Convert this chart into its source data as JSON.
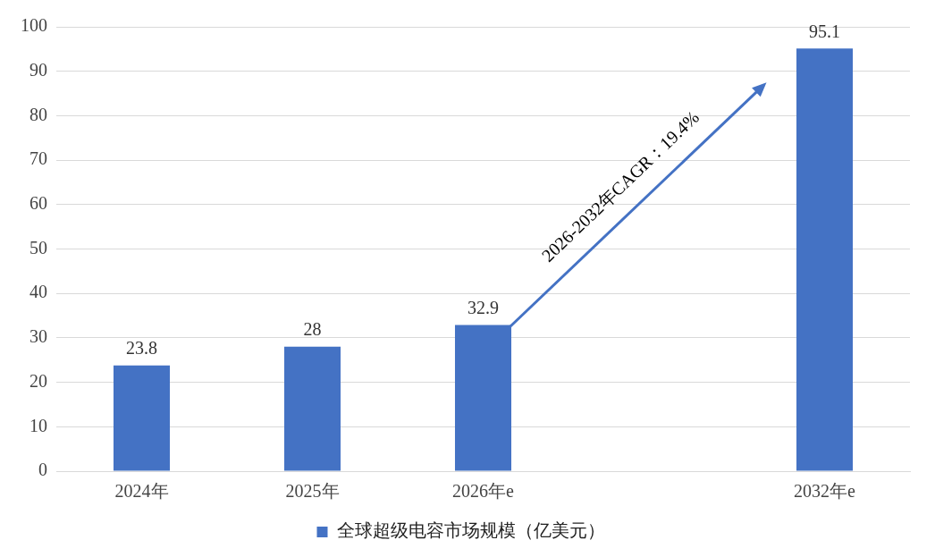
{
  "chart_data": {
    "type": "bar",
    "categories": [
      "2024年",
      "2025年",
      "2026年e",
      null,
      "2032年e"
    ],
    "series": [
      {
        "name": "全球超级电容市场规模（亿美元）",
        "color": "#4472c4",
        "values": [
          23.8,
          28,
          32.9,
          null,
          95.1
        ]
      }
    ],
    "ylim": [
      0,
      100
    ],
    "yticks": [
      0,
      10,
      20,
      30,
      40,
      50,
      60,
      70,
      80,
      90,
      100
    ],
    "grid": "y",
    "legend": "bottom",
    "data_labels": true,
    "annotations": [
      "2026-2032年CAGR：19.4%"
    ]
  }
}
